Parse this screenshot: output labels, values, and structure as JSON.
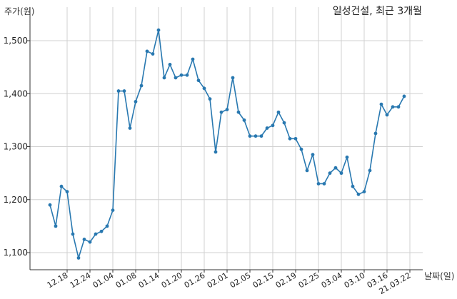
{
  "chart_data": {
    "type": "line",
    "title": "일성건설, 최근 3개월",
    "ylabel": "주가(원)",
    "xlabel": "날짜(일)",
    "ylim": [
      1060,
      1530
    ],
    "yticks": [
      1100,
      1200,
      1300,
      1400,
      1500
    ],
    "ytick_labels": [
      "1,100",
      "1,200",
      "1,300",
      "1,400",
      "1,500"
    ],
    "xtick_labels": [
      "12.18",
      "12.24",
      "01.04",
      "01.08",
      "01.14",
      "01.20",
      "01.26",
      "02.01",
      "02.05",
      "02.15",
      "02.19",
      "02.25",
      "03.04",
      "03.10",
      "03.16",
      "21.03.22"
    ],
    "xtick_index": [
      3,
      7,
      11,
      15,
      19,
      23,
      27,
      31,
      35,
      39,
      43,
      47,
      51,
      55,
      59,
      63
    ],
    "grid": true,
    "color": "#2878b0",
    "series": [
      {
        "values": [
          1190,
          1150,
          1225,
          1215,
          1135,
          1090,
          1125,
          1120,
          1135,
          1140,
          1150,
          1180,
          1405,
          1405,
          1335,
          1385,
          1415,
          1480,
          1475,
          1520,
          1430,
          1455,
          1430,
          1435,
          1435,
          1465,
          1425,
          1410,
          1390,
          1290,
          1365,
          1370,
          1430,
          1365,
          1350,
          1320,
          1320,
          1320,
          1335,
          1340,
          1365,
          1345,
          1315,
          1315,
          1295,
          1255,
          1285,
          1230,
          1230,
          1250,
          1260,
          1250,
          1280,
          1225,
          1210,
          1215,
          1255,
          1325,
          1380,
          1360,
          1375,
          1375,
          1395
        ]
      }
    ]
  }
}
